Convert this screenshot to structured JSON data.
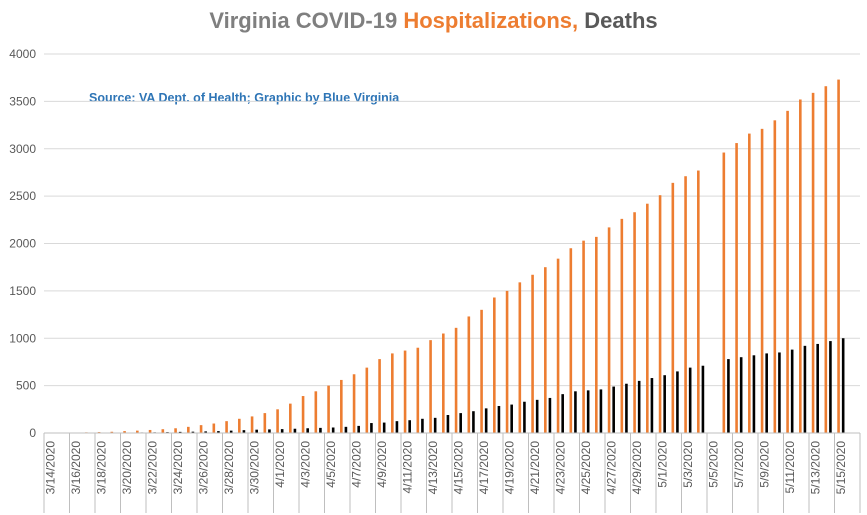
{
  "title": {
    "part1": "Virginia COVID-19 ",
    "part2": "Hospitalizations,",
    "part3": " Deaths"
  },
  "source_note": "Source: VA Dept. of Health; Graphic by Blue Virginia",
  "colors": {
    "hospitalizations": "#ed7d31",
    "deaths": "#000000",
    "grid": "#d9d9d9",
    "axis": "#bfbfbf"
  },
  "chart_data": {
    "type": "bar",
    "title": "Virginia COVID-19 Hospitalizations, Deaths",
    "xlabel": "",
    "ylabel": "",
    "ylim": [
      0,
      4000
    ],
    "yticks": [
      "0",
      "500",
      "1000",
      "1500",
      "2000",
      "2500",
      "3000",
      "3500",
      "4000"
    ],
    "grid": true,
    "legend": "none",
    "categories": [
      "3/14/2020",
      "3/15/2020",
      "3/16/2020",
      "3/17/2020",
      "3/18/2020",
      "3/19/2020",
      "3/20/2020",
      "3/21/2020",
      "3/22/2020",
      "3/23/2020",
      "3/24/2020",
      "3/25/2020",
      "3/26/2020",
      "3/27/2020",
      "3/28/2020",
      "3/29/2020",
      "3/30/2020",
      "3/31/2020",
      "4/1/2020",
      "4/2/2020",
      "4/3/2020",
      "4/4/2020",
      "4/5/2020",
      "4/6/2020",
      "4/7/2020",
      "4/8/2020",
      "4/9/2020",
      "4/10/2020",
      "4/11/2020",
      "4/12/2020",
      "4/13/2020",
      "4/14/2020",
      "4/15/2020",
      "4/16/2020",
      "4/17/2020",
      "4/18/2020",
      "4/19/2020",
      "4/20/2020",
      "4/21/2020",
      "4/22/2020",
      "4/23/2020",
      "4/24/2020",
      "4/25/2020",
      "4/26/2020",
      "4/27/2020",
      "4/28/2020",
      "4/29/2020",
      "4/30/2020",
      "5/1/2020",
      "5/2/2020",
      "5/3/2020",
      "5/4/2020",
      "5/5/2020",
      "5/6/2020",
      "5/7/2020",
      "5/8/2020",
      "5/9/2020",
      "5/10/2020",
      "5/11/2020",
      "5/12/2020",
      "5/13/2020",
      "5/14/2020",
      "5/15/2020",
      "5/16/2020"
    ],
    "x_tick_labels": [
      "3/14/2020",
      "3/16/2020",
      "3/18/2020",
      "3/20/2020",
      "3/22/2020",
      "3/24/2020",
      "3/26/2020",
      "3/28/2020",
      "3/30/2020",
      "4/1/2020",
      "4/3/2020",
      "4/5/2020",
      "4/7/2020",
      "4/9/2020",
      "4/11/2020",
      "4/13/2020",
      "4/15/2020",
      "4/17/2020",
      "4/19/2020",
      "4/21/2020",
      "4/23/2020",
      "4/25/2020",
      "4/27/2020",
      "4/29/2020",
      "5/1/2020",
      "5/3/2020",
      "5/5/2020",
      "5/7/2020",
      "5/9/2020",
      "5/11/2020",
      "5/13/2020",
      "5/15/2020"
    ],
    "series": [
      {
        "name": "Hospitalizations",
        "values": [
          2,
          4,
          5,
          7,
          10,
          13,
          20,
          25,
          32,
          40,
          50,
          65,
          83,
          100,
          125,
          150,
          175,
          210,
          250,
          310,
          390,
          440,
          500,
          560,
          620,
          690,
          780,
          840,
          870,
          900,
          980,
          1050,
          1110,
          1230,
          1300,
          1430,
          1500,
          1590,
          1670,
          1750,
          1840,
          1950,
          2030,
          2070,
          2170,
          2260,
          2330,
          2420,
          2510,
          2640,
          2710,
          2770,
          null,
          2960,
          3060,
          3160,
          3210,
          3300,
          3400,
          3520,
          3590,
          3660,
          3730,
          null
        ]
      },
      {
        "name": "Deaths",
        "values": [
          1,
          1,
          2,
          2,
          3,
          3,
          5,
          6,
          7,
          9,
          12,
          14,
          17,
          20,
          25,
          30,
          35,
          38,
          41,
          45,
          50,
          54,
          58,
          65,
          75,
          105,
          110,
          125,
          135,
          150,
          160,
          190,
          210,
          230,
          260,
          285,
          300,
          330,
          350,
          370,
          410,
          440,
          450,
          460,
          490,
          520,
          550,
          580,
          610,
          650,
          690,
          710,
          null,
          780,
          800,
          820,
          840,
          850,
          880,
          920,
          940,
          970,
          1000,
          null
        ]
      }
    ]
  }
}
